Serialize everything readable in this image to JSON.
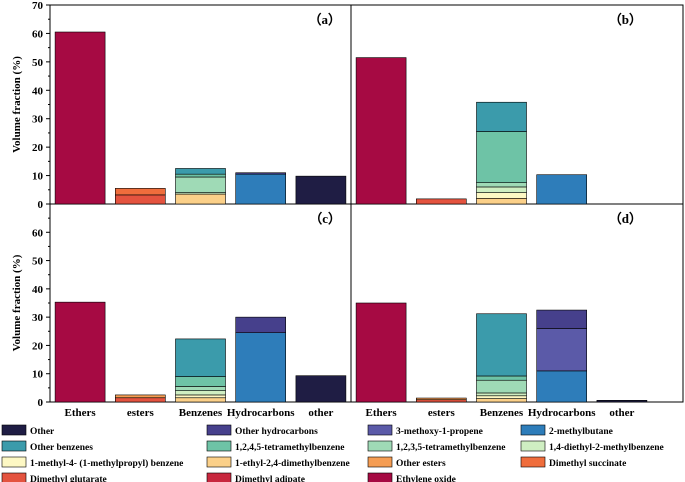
{
  "chart_data": {
    "type": "bar",
    "stacked": true,
    "ylabel": "Volume fraction (%)",
    "ylim": [
      0,
      70
    ],
    "yticks": [
      "0",
      "10",
      "20",
      "30",
      "40",
      "50",
      "60",
      "70"
    ],
    "categories": [
      "Ethers",
      "esters",
      "Benzenes",
      "Hydrocarbons",
      "other"
    ],
    "legend_placement": "bottom",
    "components": [
      {
        "name": "Other",
        "color": "#1f1d44"
      },
      {
        "name": "Other hydrocarbons",
        "color": "#46408c"
      },
      {
        "name": "3-methoxy-1-propene",
        "color": "#5b5aa8"
      },
      {
        "name": "2-methylbutane",
        "color": "#2e7dba"
      },
      {
        "name": "Other benzenes",
        "color": "#3b9bab"
      },
      {
        "name": "1,2,4,5-tetramethylbenzene",
        "color": "#6ec3a6"
      },
      {
        "name": "1,2,3,5-tetramethylbenzene",
        "color": "#9fdab6"
      },
      {
        "name": "1,4-diethyl-2-methylbenzene",
        "color": "#cfeec2"
      },
      {
        "name": "1-methyl-4- (1-methylpropyl) benzene",
        "color": "#fdf8c4"
      },
      {
        "name": "1-ethyl-2,4-dimethylbenzene",
        "color": "#fbd089"
      },
      {
        "name": "Other esters",
        "color": "#f59d53"
      },
      {
        "name": "Dimethyl succinate",
        "color": "#ef6d3c"
      },
      {
        "name": "Dimethyl glutarate",
        "color": "#e4533f"
      },
      {
        "name": "Dimethyl adipate",
        "color": "#c8273e"
      },
      {
        "name": "Ethylene oxide",
        "color": "#a60a43"
      }
    ],
    "panels": [
      {
        "label": "（a）",
        "bars": [
          {
            "category": "Ethers",
            "segments": [
              {
                "component": "Ethylene oxide",
                "value": 60.5
              }
            ]
          },
          {
            "category": "esters",
            "segments": [
              {
                "component": "Dimethyl glutarate",
                "value": 3.2
              },
              {
                "component": "Dimethyl succinate",
                "value": 2.3
              }
            ]
          },
          {
            "category": "Benzenes",
            "segments": [
              {
                "component": "1-ethyl-2,4-dimethylbenzene",
                "value": 3.5
              },
              {
                "component": "1,4-diethyl-2-methylbenzene",
                "value": 0.5
              },
              {
                "component": "1,2,3,5-tetramethylbenzene",
                "value": 5.5
              },
              {
                "component": "1,2,4,5-tetramethylbenzene",
                "value": 1.0
              },
              {
                "component": "Other benzenes",
                "value": 2.0
              }
            ]
          },
          {
            "category": "Hydrocarbons",
            "segments": [
              {
                "component": "2-methylbutane",
                "value": 10.5
              },
              {
                "component": "Other hydrocarbons",
                "value": 0.5
              }
            ]
          },
          {
            "category": "other",
            "segments": [
              {
                "component": "Other",
                "value": 9.8
              }
            ]
          }
        ]
      },
      {
        "label": "（b）",
        "bars": [
          {
            "category": "Ethers",
            "segments": [
              {
                "component": "Ethylene oxide",
                "value": 51.5
              }
            ]
          },
          {
            "category": "esters",
            "segments": [
              {
                "component": "Dimethyl glutarate",
                "value": 1.8
              }
            ]
          },
          {
            "category": "Benzenes",
            "segments": [
              {
                "component": "1-ethyl-2,4-dimethylbenzene",
                "value": 2.0
              },
              {
                "component": "1-methyl-4- (1-methylpropyl) benzene",
                "value": 2.0
              },
              {
                "component": "1,4-diethyl-2-methylbenzene",
                "value": 2.0
              },
              {
                "component": "1,2,3,5-tetramethylbenzene",
                "value": 1.5
              },
              {
                "component": "1,2,4,5-tetramethylbenzene",
                "value": 18.0
              },
              {
                "component": "Other benzenes",
                "value": 10.3
              }
            ]
          },
          {
            "category": "Hydrocarbons",
            "segments": [
              {
                "component": "2-methylbutane",
                "value": 10.3
              }
            ]
          },
          {
            "category": "other",
            "segments": []
          }
        ]
      },
      {
        "label": "（c）",
        "bars": [
          {
            "category": "Ethers",
            "segments": [
              {
                "component": "Ethylene oxide",
                "value": 35.3
              }
            ]
          },
          {
            "category": "esters",
            "segments": [
              {
                "component": "Dimethyl glutarate",
                "value": 1.5
              },
              {
                "component": "Other esters",
                "value": 1.0
              }
            ]
          },
          {
            "category": "Benzenes",
            "segments": [
              {
                "component": "1-ethyl-2,4-dimethylbenzene",
                "value": 1.5
              },
              {
                "component": "1-methyl-4- (1-methylpropyl) benzene",
                "value": 1.0
              },
              {
                "component": "1,4-diethyl-2-methylbenzene",
                "value": 1.5
              },
              {
                "component": "1,2,3,5-tetramethylbenzene",
                "value": 1.5
              },
              {
                "component": "1,2,4,5-tetramethylbenzene",
                "value": 3.5
              },
              {
                "component": "Other benzenes",
                "value": 13.3
              }
            ]
          },
          {
            "category": "Hydrocarbons",
            "segments": [
              {
                "component": "2-methylbutane",
                "value": 24.5
              },
              {
                "component": "Other hydrocarbons",
                "value": 5.5
              }
            ]
          },
          {
            "category": "other",
            "segments": [
              {
                "component": "Other",
                "value": 9.3
              }
            ]
          }
        ]
      },
      {
        "label": "（d）",
        "bars": [
          {
            "category": "Ethers",
            "segments": [
              {
                "component": "Ethylene oxide",
                "value": 35.0
              }
            ]
          },
          {
            "category": "esters",
            "segments": [
              {
                "component": "Dimethyl glutarate",
                "value": 0.8
              },
              {
                "component": "Other esters",
                "value": 0.6
              }
            ]
          },
          {
            "category": "Benzenes",
            "segments": [
              {
                "component": "1-ethyl-2,4-dimethylbenzene",
                "value": 1.2
              },
              {
                "component": "1-methyl-4- (1-methylpropyl) benzene",
                "value": 1.0
              },
              {
                "component": "1,4-diethyl-2-methylbenzene",
                "value": 1.0
              },
              {
                "component": "1,2,3,5-tetramethylbenzene",
                "value": 4.5
              },
              {
                "component": "1,2,4,5-tetramethylbenzene",
                "value": 1.5
              },
              {
                "component": "Other benzenes",
                "value": 22.0
              }
            ]
          },
          {
            "category": "Hydrocarbons",
            "segments": [
              {
                "component": "2-methylbutane",
                "value": 11.0
              },
              {
                "component": "3-methoxy-1-propene",
                "value": 15.0
              },
              {
                "component": "Other hydrocarbons",
                "value": 6.5
              }
            ]
          },
          {
            "category": "other",
            "segments": [
              {
                "component": "Other",
                "value": 0.6
              }
            ]
          }
        ]
      }
    ]
  }
}
